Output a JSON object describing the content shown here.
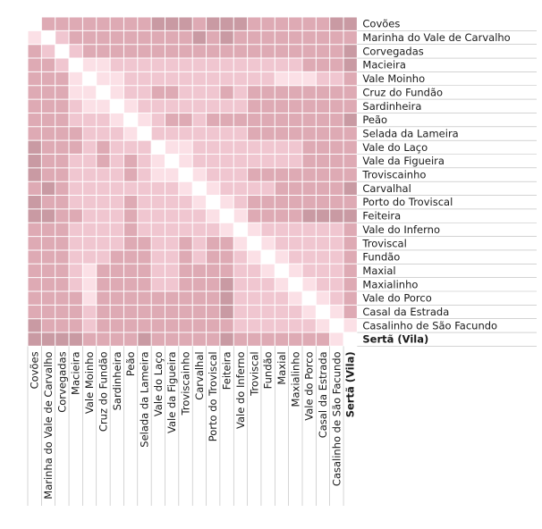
{
  "chart_data": {
    "type": "heatmap",
    "title": "",
    "xlabel": "",
    "ylabel": "",
    "bold_label": "Sertã (Vila)",
    "labels": [
      "Covões",
      "Marinha do Vale de Carvalho",
      "Corvegadas",
      "Macieira",
      "Vale Moinho",
      "Cruz do Fundão",
      "Sardinheira",
      "Peão",
      "Selada da Lameira",
      "Vale do Laço",
      "Vale da Figueira",
      "Troviscainho",
      "Carvalhal",
      "Porto do Troviscal",
      "Feiteira",
      "Vale do Inferno",
      "Troviscal",
      "Fundão",
      "Maxial",
      "Maxialinho",
      "Vale do Porco",
      "Casal da Estrada",
      "Casalinho de São Facundo",
      "Sertã (Vila)"
    ],
    "levels": [
      "#ffffff",
      "#fbe0e6",
      "#f0c6d0",
      "#deaab4",
      "#c99aa3",
      "#ad7f88"
    ],
    "matrix": [
      [
        0,
        3,
        3,
        3,
        3,
        3,
        3,
        3,
        3,
        4,
        4,
        4,
        3,
        4,
        4,
        4,
        3,
        3,
        3,
        3,
        3,
        3,
        4,
        4
      ],
      [
        1,
        0,
        2,
        3,
        3,
        3,
        3,
        3,
        3,
        3,
        3,
        3,
        4,
        3,
        4,
        3,
        3,
        3,
        3,
        3,
        3,
        3,
        3,
        3
      ],
      [
        3,
        2,
        0,
        2,
        3,
        3,
        3,
        3,
        3,
        3,
        3,
        3,
        3,
        3,
        3,
        3,
        3,
        3,
        3,
        3,
        3,
        3,
        3,
        4
      ],
      [
        3,
        3,
        2,
        0,
        1,
        1,
        2,
        2,
        2,
        2,
        2,
        2,
        2,
        2,
        2,
        2,
        2,
        2,
        2,
        2,
        3,
        3,
        3,
        4
      ],
      [
        3,
        3,
        3,
        1,
        0,
        1,
        1,
        2,
        2,
        2,
        2,
        2,
        2,
        2,
        2,
        2,
        2,
        2,
        1,
        1,
        1,
        2,
        2,
        3
      ],
      [
        3,
        3,
        3,
        1,
        1,
        0,
        1,
        2,
        2,
        3,
        3,
        2,
        2,
        2,
        3,
        2,
        3,
        3,
        3,
        3,
        3,
        3,
        3,
        3
      ],
      [
        3,
        3,
        3,
        2,
        1,
        1,
        0,
        1,
        2,
        2,
        2,
        2,
        2,
        2,
        2,
        2,
        3,
        3,
        3,
        3,
        3,
        3,
        3,
        3
      ],
      [
        3,
        3,
        3,
        2,
        2,
        2,
        1,
        0,
        1,
        2,
        3,
        3,
        2,
        3,
        3,
        3,
        3,
        3,
        3,
        3,
        3,
        3,
        3,
        4
      ],
      [
        3,
        3,
        3,
        3,
        2,
        2,
        2,
        1,
        0,
        2,
        2,
        2,
        2,
        2,
        2,
        2,
        3,
        3,
        3,
        3,
        3,
        3,
        3,
        3
      ],
      [
        4,
        3,
        3,
        3,
        2,
        3,
        2,
        2,
        2,
        0,
        1,
        1,
        2,
        2,
        2,
        2,
        2,
        2,
        2,
        2,
        3,
        3,
        3,
        3
      ],
      [
        4,
        3,
        3,
        2,
        2,
        3,
        2,
        3,
        2,
        1,
        0,
        1,
        2,
        2,
        2,
        2,
        2,
        2,
        2,
        2,
        3,
        3,
        3,
        3
      ],
      [
        4,
        3,
        3,
        2,
        2,
        2,
        2,
        3,
        2,
        1,
        1,
        0,
        1,
        2,
        2,
        2,
        3,
        3,
        3,
        3,
        3,
        3,
        3,
        3
      ],
      [
        3,
        4,
        3,
        2,
        2,
        2,
        2,
        2,
        2,
        2,
        2,
        1,
        0,
        1,
        2,
        2,
        2,
        2,
        3,
        3,
        3,
        3,
        3,
        4
      ],
      [
        4,
        3,
        3,
        2,
        2,
        2,
        2,
        3,
        2,
        2,
        2,
        2,
        1,
        0,
        1,
        2,
        3,
        3,
        3,
        3,
        3,
        3,
        3,
        3
      ],
      [
        4,
        4,
        3,
        3,
        2,
        2,
        2,
        3,
        2,
        2,
        2,
        2,
        2,
        1,
        0,
        1,
        3,
        3,
        3,
        3,
        4,
        4,
        4,
        4
      ],
      [
        3,
        3,
        3,
        2,
        2,
        2,
        2,
        3,
        2,
        2,
        2,
        2,
        2,
        2,
        1,
        0,
        1,
        2,
        2,
        2,
        2,
        2,
        2,
        3
      ],
      [
        3,
        3,
        3,
        2,
        2,
        2,
        2,
        3,
        3,
        2,
        2,
        3,
        2,
        3,
        3,
        1,
        0,
        1,
        2,
        2,
        2,
        2,
        2,
        3
      ],
      [
        3,
        3,
        3,
        2,
        2,
        2,
        3,
        3,
        3,
        2,
        2,
        3,
        2,
        3,
        3,
        2,
        1,
        0,
        1,
        2,
        2,
        2,
        2,
        3
      ],
      [
        3,
        3,
        3,
        2,
        1,
        3,
        3,
        3,
        3,
        2,
        2,
        3,
        3,
        3,
        3,
        2,
        2,
        1,
        0,
        1,
        2,
        2,
        2,
        3
      ],
      [
        3,
        3,
        3,
        2,
        1,
        3,
        3,
        3,
        3,
        2,
        2,
        3,
        3,
        3,
        4,
        2,
        2,
        2,
        1,
        0,
        1,
        2,
        2,
        3
      ],
      [
        3,
        3,
        3,
        3,
        1,
        3,
        3,
        3,
        3,
        3,
        3,
        3,
        3,
        3,
        4,
        2,
        2,
        2,
        2,
        1,
        0,
        1,
        2,
        3
      ],
      [
        3,
        3,
        3,
        3,
        2,
        3,
        3,
        3,
        3,
        3,
        3,
        3,
        3,
        3,
        4,
        2,
        2,
        2,
        2,
        2,
        1,
        0,
        1,
        3
      ],
      [
        4,
        3,
        3,
        3,
        2,
        3,
        3,
        3,
        3,
        3,
        3,
        3,
        3,
        3,
        3,
        2,
        2,
        2,
        2,
        2,
        2,
        1,
        0,
        1
      ],
      [
        4,
        4,
        4,
        4,
        3,
        3,
        3,
        3,
        4,
        3,
        3,
        3,
        3,
        3,
        4,
        3,
        3,
        3,
        3,
        3,
        3,
        3,
        1,
        0
      ]
    ]
  }
}
